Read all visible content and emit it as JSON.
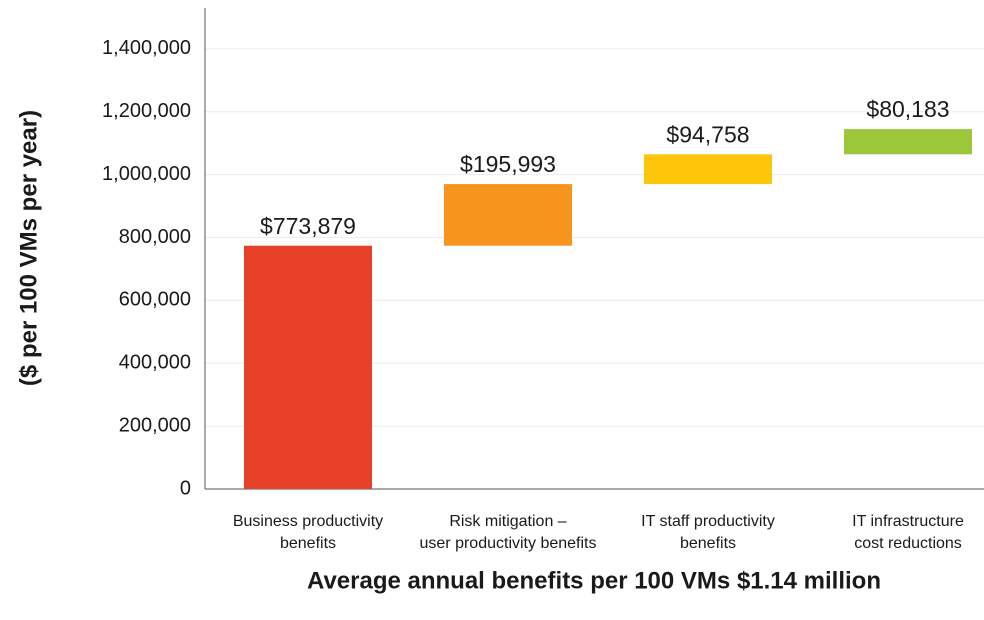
{
  "chart_data": {
    "type": "waterfall",
    "ylabel": "($ per 100 VMs per year)",
    "xlabel": "Average annual benefits per 100 VMs $1.14 million",
    "categories": [
      [
        "Business productivity",
        "benefits"
      ],
      [
        "Risk mitigation –",
        "user productivity benefits"
      ],
      [
        "IT staff productivity",
        "benefits"
      ],
      [
        "IT infrastructure",
        "cost reductions"
      ]
    ],
    "values": [
      773879,
      195993,
      94758,
      80183
    ],
    "value_labels": [
      "$773,879",
      "$195,993",
      "$94,758",
      "$80,183"
    ],
    "colors": [
      "#e8412a",
      "#f7941d",
      "#fdc60a",
      "#9dc63b"
    ],
    "ylim": [
      0,
      1530000
    ],
    "yticks": [
      0,
      {
        "value": 200000,
        "label": "200,000"
      },
      {
        "value": 400000,
        "label": "400,000"
      },
      {
        "value": 600000,
        "label": "600,000"
      },
      {
        "value": 800000,
        "label": "800,000"
      },
      {
        "value": 1000000,
        "label": "1,000,000"
      },
      {
        "value": 1200000,
        "label": "1,200,000"
      },
      {
        "value": 1400000,
        "label": "1,400,000"
      }
    ],
    "grid": true
  }
}
